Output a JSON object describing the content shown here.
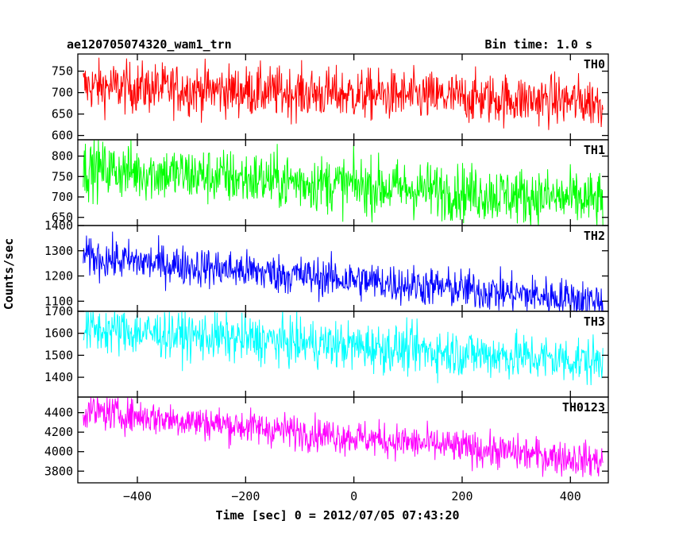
{
  "chart_data": {
    "type": "line",
    "title": "ae120705074320_wam1_trn",
    "bin_time_label": "Bin time: 1.0 s",
    "xlabel": "Time [sec] 0 = 2012/07/05 07:43:20",
    "ylabel": "Counts/sec",
    "xlim": [
      -510,
      470
    ],
    "x_range": [
      -500,
      460
    ],
    "x_ticks": [
      "−400",
      "−200",
      "0",
      "200",
      "400"
    ],
    "series": [
      {
        "name": "TH0",
        "color": "#ff0000",
        "ylim": [
          590,
          790
        ],
        "trend": [
          715,
          678
        ],
        "noise": 30,
        "y_ticks": [
          "600",
          "650",
          "700",
          "750"
        ]
      },
      {
        "name": "TH1",
        "color": "#00ff00",
        "ylim": [
          630,
          840
        ],
        "trend": [
          770,
          690
        ],
        "noise": 35,
        "y_ticks": [
          "650",
          "700",
          "750",
          "800"
        ]
      },
      {
        "name": "TH2",
        "color": "#0000ff",
        "ylim": [
          1060,
          1400
        ],
        "trend": [
          1275,
          1100
        ],
        "noise": 40,
        "y_ticks": [
          "1100",
          "1200",
          "1300",
          "1400"
        ]
      },
      {
        "name": "TH3",
        "color": "#00ffff",
        "ylim": [
          1310,
          1700
        ],
        "trend": [
          1620,
          1470
        ],
        "noise": 55,
        "y_ticks": [
          "1400",
          "1500",
          "1600",
          "1700"
        ]
      },
      {
        "name": "TH0123",
        "color": "#ff00ff",
        "ylim": [
          3680,
          4560
        ],
        "trend": [
          4420,
          3900
        ],
        "noise": 90,
        "y_ticks": [
          "3800",
          "4000",
          "4200",
          "4400"
        ]
      }
    ]
  }
}
